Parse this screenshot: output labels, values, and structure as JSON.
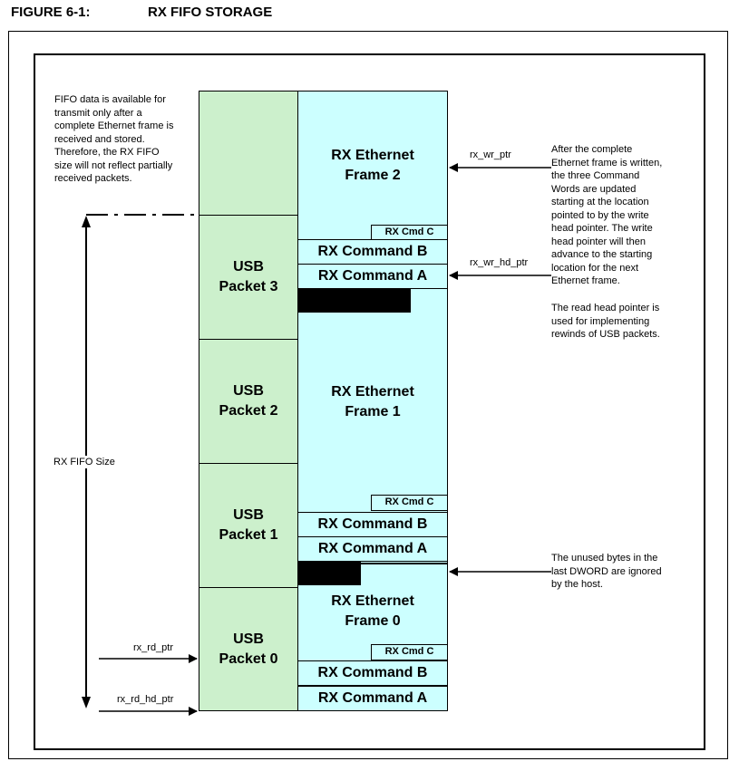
{
  "figure": {
    "number": "FIGURE 6-1:",
    "title": "RX FIFO STORAGE"
  },
  "usb_packets": [
    {
      "label": "USB\nPacket 3"
    },
    {
      "label": "USB\nPacket 2"
    },
    {
      "label": "USB\nPacket 1"
    },
    {
      "label": "USB\nPacket 0"
    }
  ],
  "ethernet_frames": [
    {
      "label": "RX Ethernet\nFrame 2"
    },
    {
      "label": "RX Ethernet\nFrame 1"
    },
    {
      "label": "RX Ethernet\nFrame 0"
    }
  ],
  "commands": {
    "cmd_c": "RX Cmd C",
    "cmd_b": "RX Command B",
    "cmd_a": "RX Command A"
  },
  "pointers": {
    "rx_wr_ptr": "rx_wr_ptr",
    "rx_wr_hd_ptr": "rx_wr_hd_ptr",
    "rx_rd_ptr": "rx_rd_ptr",
    "rx_rd_hd_ptr": "rx_rd_hd_ptr"
  },
  "size_label": "RX FIFO Size",
  "notes": {
    "fifo_available": "FIFO data is available for\ntransmit only after a\ncomplete Ethernet frame is\nreceived and stored.\nTherefore, the RX FIFO\nsize will not reflect partially\nreceived packets.",
    "write_pointer": "After the complete\nEthernet frame is written,\nthe three Command\nWords are  updated\nstarting at the location\npointed to by the write\nhead pointer. The write\nhead pointer will then\nadvance to the starting\nlocation for the next\nEthernet frame.",
    "read_head": "The read head pointer is\nused for implementing\nrewinds of USB packets.",
    "unused_bytes": "The unused bytes in the\nlast DWORD are  ignored\nby the host."
  }
}
